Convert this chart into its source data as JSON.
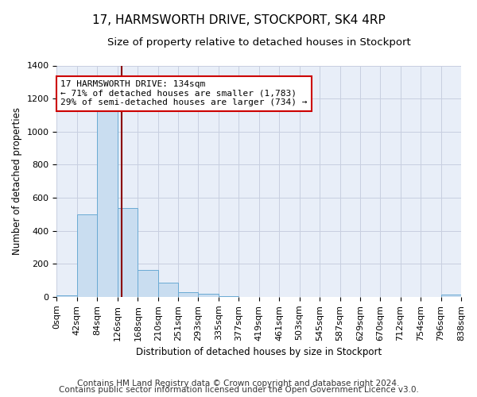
{
  "title": "17, HARMSWORTH DRIVE, STOCKPORT, SK4 4RP",
  "subtitle": "Size of property relative to detached houses in Stockport",
  "xlabel": "Distribution of detached houses by size in Stockport",
  "ylabel": "Number of detached properties",
  "bar_color": "#c9ddf0",
  "bar_edge_color": "#6aaad4",
  "figure_bg_color": "#ffffff",
  "plot_bg_color": "#e8eef8",
  "grid_color": "#c8cfe0",
  "bin_edges": [
    0,
    42,
    84,
    126,
    168,
    210,
    251,
    293,
    335,
    377,
    419,
    461,
    503,
    545,
    587,
    629,
    670,
    712,
    754,
    796,
    838
  ],
  "bin_counts": [
    10,
    500,
    1150,
    540,
    165,
    85,
    28,
    20,
    5,
    2,
    1,
    0,
    0,
    0,
    0,
    0,
    0,
    0,
    0,
    12
  ],
  "property_size": 134,
  "red_line_color": "#8b0000",
  "annotation_line1": "17 HARMSWORTH DRIVE: 134sqm",
  "annotation_line2": "← 71% of detached houses are smaller (1,783)",
  "annotation_line3": "29% of semi-detached houses are larger (734) →",
  "annotation_box_color": "#ffffff",
  "annotation_border_color": "#cc0000",
  "ylim": [
    0,
    1400
  ],
  "yticks": [
    0,
    200,
    400,
    600,
    800,
    1000,
    1200,
    1400
  ],
  "x_tick_labels": [
    "0sqm",
    "42sqm",
    "84sqm",
    "126sqm",
    "168sqm",
    "210sqm",
    "251sqm",
    "293sqm",
    "335sqm",
    "377sqm",
    "419sqm",
    "461sqm",
    "503sqm",
    "545sqm",
    "587sqm",
    "629sqm",
    "670sqm",
    "712sqm",
    "754sqm",
    "796sqm",
    "838sqm"
  ],
  "footer_line1": "Contains HM Land Registry data © Crown copyright and database right 2024.",
  "footer_line2": "Contains public sector information licensed under the Open Government Licence v3.0.",
  "footer_fontsize": 7.5,
  "title_fontsize": 11,
  "subtitle_fontsize": 9.5,
  "axis_label_fontsize": 8.5,
  "tick_fontsize": 8
}
